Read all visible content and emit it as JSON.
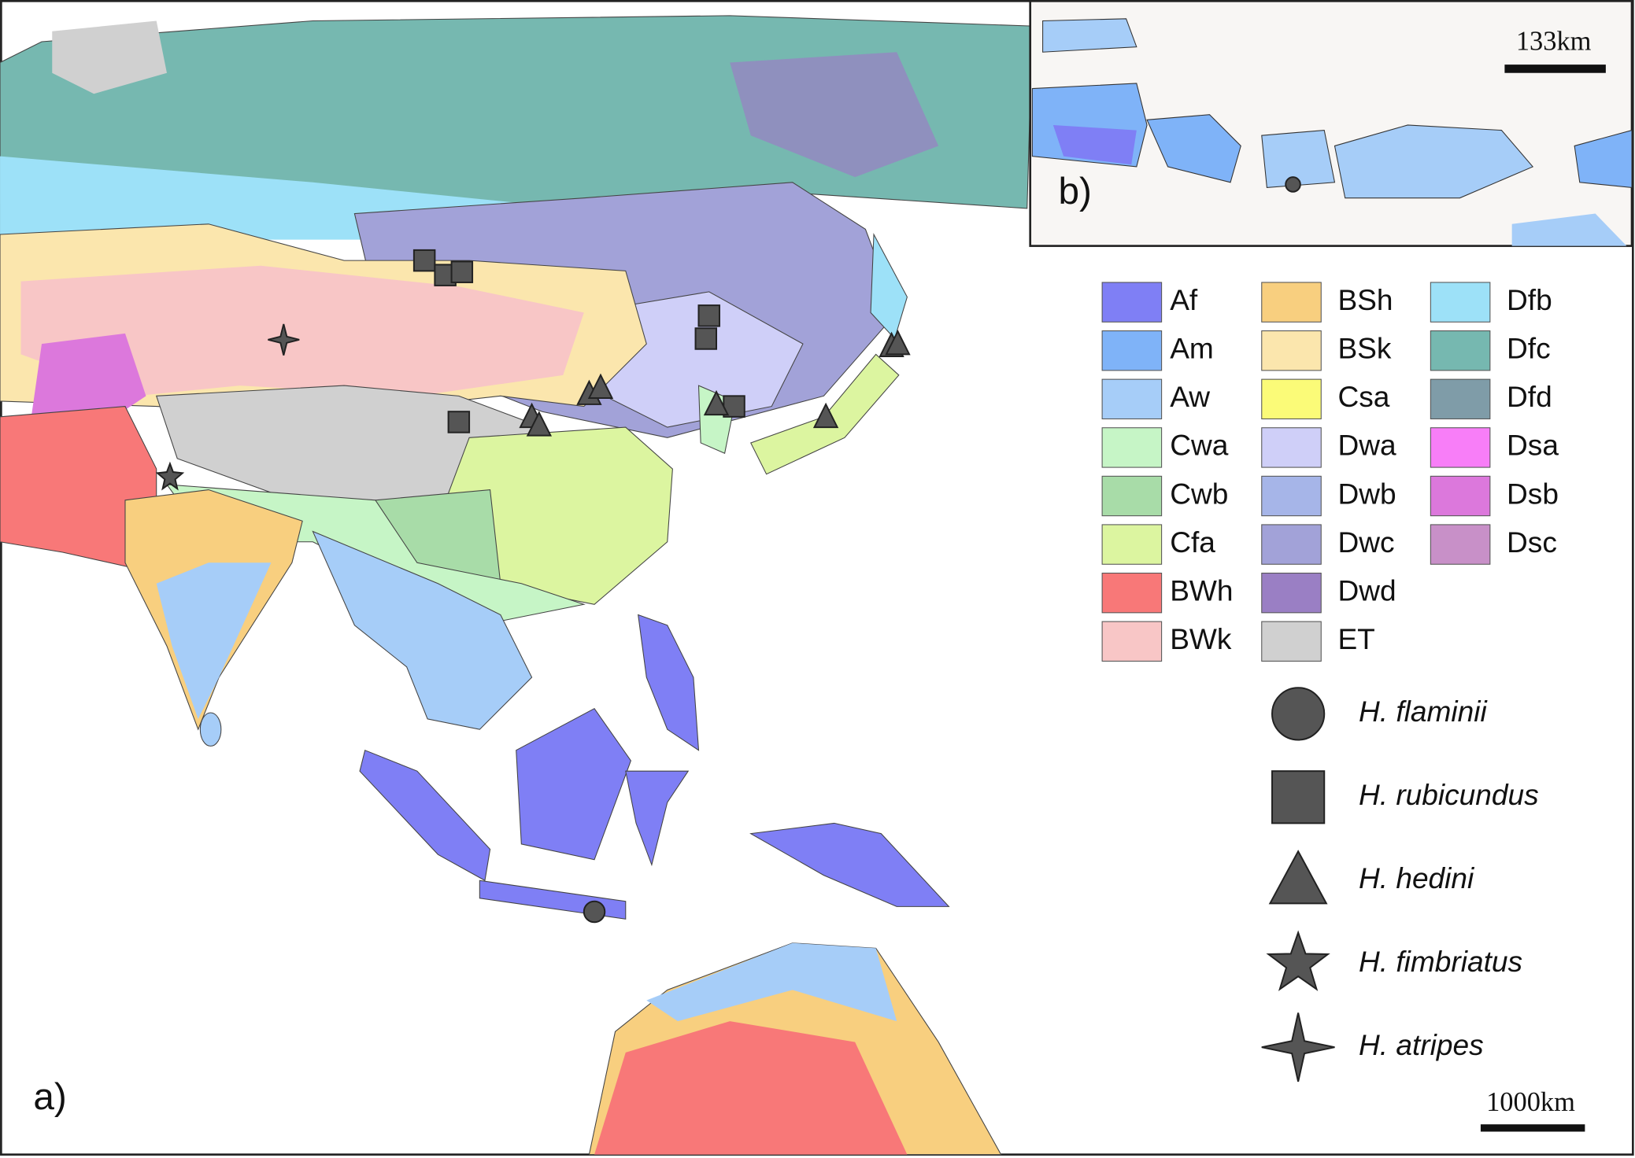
{
  "panels": {
    "main": {
      "label": "a)",
      "scale_bar": "1000km"
    },
    "inset": {
      "label": "b)",
      "scale_bar": "133km"
    }
  },
  "legend": {
    "climate": [
      {
        "code": "Af",
        "color": "#7f7ff5"
      },
      {
        "code": "Am",
        "color": "#7fb3f8"
      },
      {
        "code": "Aw",
        "color": "#a6cdf8"
      },
      {
        "code": "Cwa",
        "color": "#c6f5c6"
      },
      {
        "code": "Cwb",
        "color": "#a8dca8"
      },
      {
        "code": "Cfa",
        "color": "#dcf5a0"
      },
      {
        "code": "BWh",
        "color": "#f87878"
      },
      {
        "code": "BWk",
        "color": "#f8c6c6"
      },
      {
        "code": "BSh",
        "color": "#f8cf7f"
      },
      {
        "code": "BSk",
        "color": "#fbe6ad"
      },
      {
        "code": "Csa",
        "color": "#fbfb78"
      },
      {
        "code": "Dwa",
        "color": "#cfcff8"
      },
      {
        "code": "Dwb",
        "color": "#a6b5e8"
      },
      {
        "code": "Dwc",
        "color": "#a2a2d8"
      },
      {
        "code": "Dwd",
        "color": "#9a7fc4"
      },
      {
        "code": "ET",
        "color": "#d0d0d0"
      },
      {
        "code": "Dfb",
        "color": "#9de1f8"
      },
      {
        "code": "Dfc",
        "color": "#76b8b0"
      },
      {
        "code": "Dfd",
        "color": "#7f9ca8"
      },
      {
        "code": "Dsa",
        "color": "#f87ef8"
      },
      {
        "code": "Dsb",
        "color": "#dc78dc"
      },
      {
        "code": "Dsc",
        "color": "#c890c8"
      }
    ],
    "species": [
      {
        "name": "H. flaminii",
        "symbol": "circle"
      },
      {
        "name": "H. rubicundus",
        "symbol": "square"
      },
      {
        "name": "H. hedini",
        "symbol": "triangle"
      },
      {
        "name": "H. fimbriatus",
        "symbol": "star"
      },
      {
        "name": "H. atripes",
        "symbol": "four-point-star"
      }
    ]
  }
}
